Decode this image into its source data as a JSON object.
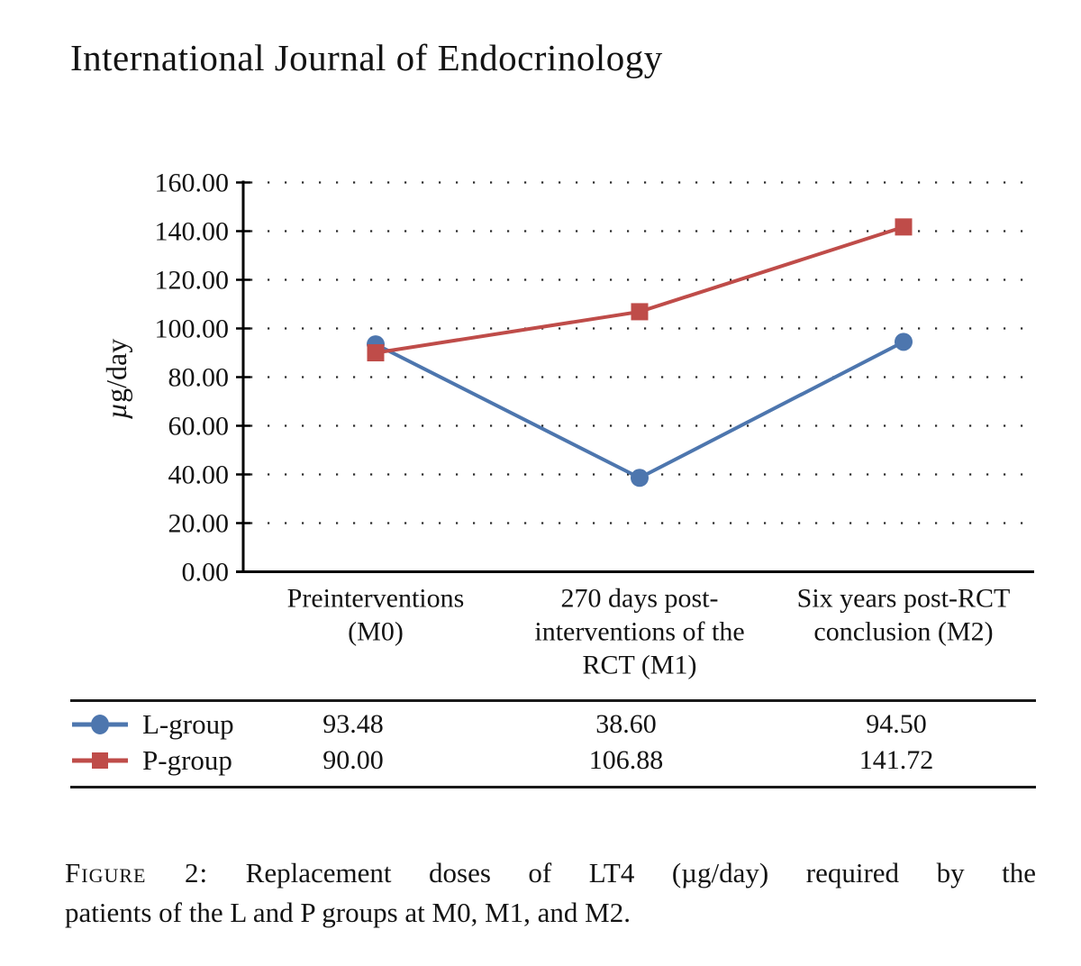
{
  "header": {
    "journal_title": "International Journal of Endocrinology"
  },
  "chart_data": {
    "type": "line",
    "title": "",
    "xlabel": "",
    "ylabel": "µg/day",
    "ylim": [
      0,
      160
    ],
    "ytick_step": 20,
    "ytick_labels": [
      "0.00",
      "20.00",
      "40.00",
      "60.00",
      "80.00",
      "100.00",
      "120.00",
      "140.00",
      "160.00"
    ],
    "grid": "dotted-horizontal",
    "legend_position": "bottom-table",
    "categories": [
      "Preinterventions (M0)",
      "270 days post-interventions of the RCT (M1)",
      "Six years post-RCT conclusion (M2)"
    ],
    "categories_lines": [
      [
        "Preinterventions",
        "(M0)"
      ],
      [
        "270 days post-",
        "interventions of the",
        "RCT (M1)"
      ],
      [
        "Six years post-RCT",
        "conclusion (M2)"
      ]
    ],
    "series": [
      {
        "name": "L-group",
        "marker": "circle",
        "color": "#4d76ae",
        "values": [
          93.48,
          38.6,
          94.5
        ]
      },
      {
        "name": "P-group",
        "marker": "square",
        "color": "#bf4c49",
        "values": [
          90.0,
          106.88,
          141.72
        ]
      }
    ]
  },
  "table": {
    "rows": [
      {
        "label": "L-group",
        "marker": "circle",
        "color": "#4d76ae",
        "values": [
          "93.48",
          "38.60",
          "94.50"
        ]
      },
      {
        "label": "P-group",
        "marker": "square",
        "color": "#bf4c49",
        "values": [
          "90.00",
          "106.88",
          "141.72"
        ]
      }
    ]
  },
  "caption": {
    "label": "Figure 2:",
    "line1_rest": "Replacement doses of LT4 (µg/day) required by the",
    "line2": "patients of the L and P groups at M0, M1, and M2."
  }
}
